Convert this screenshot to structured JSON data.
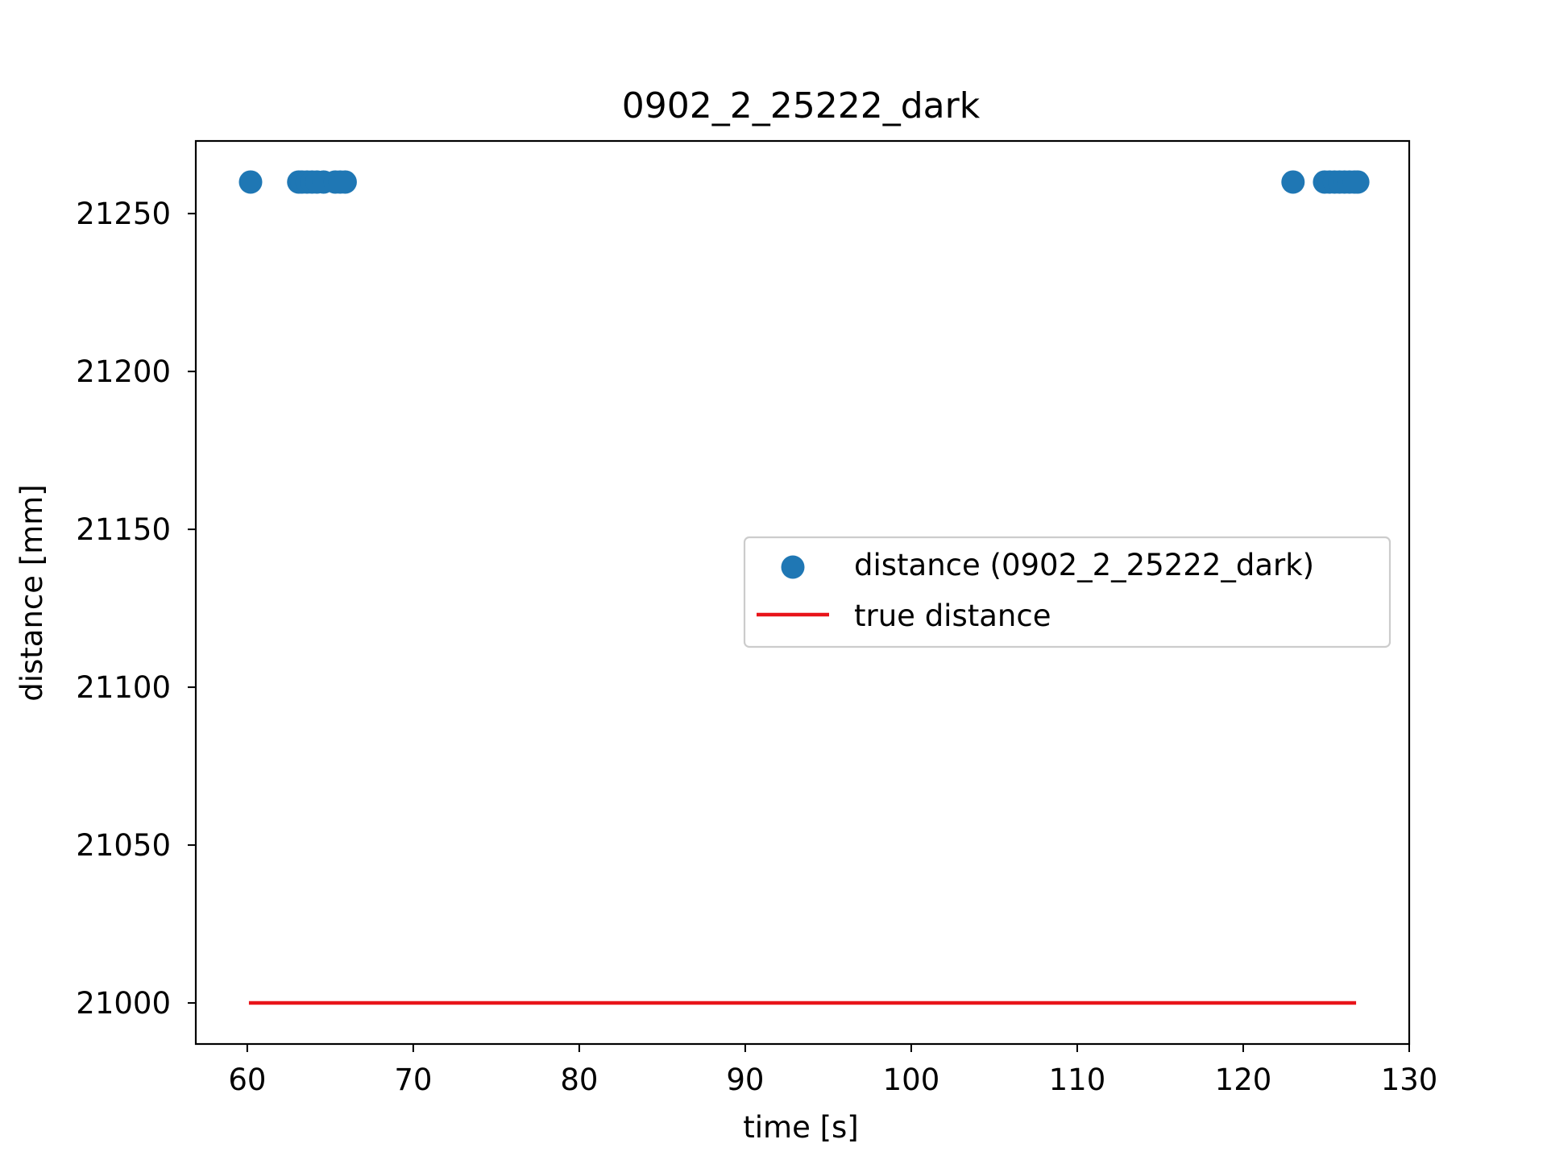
{
  "chart_data": {
    "type": "scatter",
    "title": "0902_2_25222_dark",
    "xlabel": "time [s]",
    "ylabel": "distance [mm]",
    "xlim": [
      56.9,
      130.0
    ],
    "ylim": [
      20987,
      21273
    ],
    "xticks": [
      60,
      70,
      80,
      90,
      100,
      110,
      120,
      130
    ],
    "yticks": [
      21000,
      21050,
      21100,
      21150,
      21200,
      21250
    ],
    "grid": false,
    "legend_position": "center-right",
    "series": [
      {
        "name": "distance (0902_2_25222_dark)",
        "kind": "scatter",
        "color": "#1f77b4",
        "x": [
          60.2,
          63.1,
          63.3,
          63.6,
          63.9,
          64.2,
          64.6,
          65.3,
          65.6,
          65.9,
          123.0,
          124.9,
          125.2,
          125.5,
          125.8,
          126.1,
          126.4,
          126.7,
          126.9
        ],
        "y": [
          21260,
          21260,
          21260,
          21260,
          21260,
          21260,
          21260,
          21260,
          21260,
          21260,
          21260,
          21260,
          21260,
          21260,
          21260,
          21260,
          21260,
          21260,
          21260
        ]
      },
      {
        "name": "true distance",
        "kind": "line",
        "color": "#e8141a",
        "x": [
          60.1,
          126.8
        ],
        "y": [
          21000,
          21000
        ]
      }
    ]
  }
}
